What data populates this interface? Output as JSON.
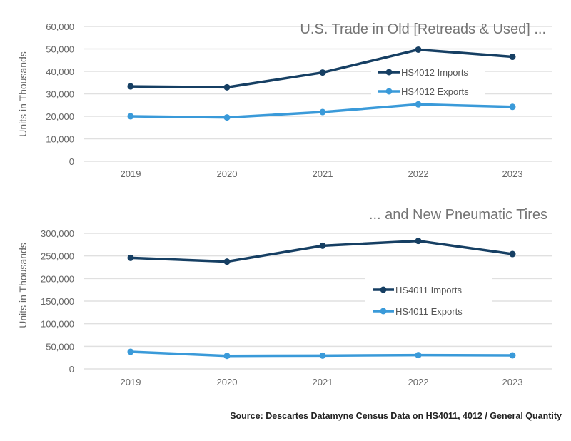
{
  "colors": {
    "imports": "#163f63",
    "exports": "#3a9ad9",
    "grid": "#e0e0e0",
    "text": "#666666"
  },
  "chart_data": [
    {
      "type": "line",
      "title": "U.S. Trade in Old [Retreads & Used] ...",
      "xlabel": "",
      "ylabel": "Units in Thousands",
      "categories": [
        "2019",
        "2020",
        "2021",
        "2022",
        "2023"
      ],
      "ylim": [
        0,
        60000
      ],
      "yticks": [
        "0",
        "10,000",
        "20,000",
        "30,000",
        "40,000",
        "50,000",
        "60,000"
      ],
      "grid": true,
      "legend": "center-right",
      "series": [
        {
          "name": "HS4012 Imports",
          "values": [
            33300,
            32900,
            39500,
            49700,
            46500
          ]
        },
        {
          "name": "HS4012 Exports",
          "values": [
            20000,
            19500,
            21900,
            25300,
            24200
          ]
        }
      ]
    },
    {
      "type": "line",
      "title": "... and New Pneumatic Tires",
      "xlabel": "",
      "ylabel": "Units in Thousands",
      "categories": [
        "2019",
        "2020",
        "2021",
        "2022",
        "2023"
      ],
      "ylim": [
        0,
        300000
      ],
      "yticks": [
        "0",
        "50,000",
        "100,000",
        "150,000",
        "200,000",
        "250,000",
        "300,000"
      ],
      "grid": true,
      "legend": "center-right",
      "series": [
        {
          "name": "HS4011 Imports",
          "values": [
            245800,
            237400,
            272600,
            283200,
            254200
          ]
        },
        {
          "name": "HS4011 Exports",
          "values": [
            37900,
            28900,
            29500,
            30500,
            30000
          ]
        }
      ]
    }
  ],
  "source": "Source: Descartes Datamyne Census Data on HS4011, 4012 / General Quantity"
}
